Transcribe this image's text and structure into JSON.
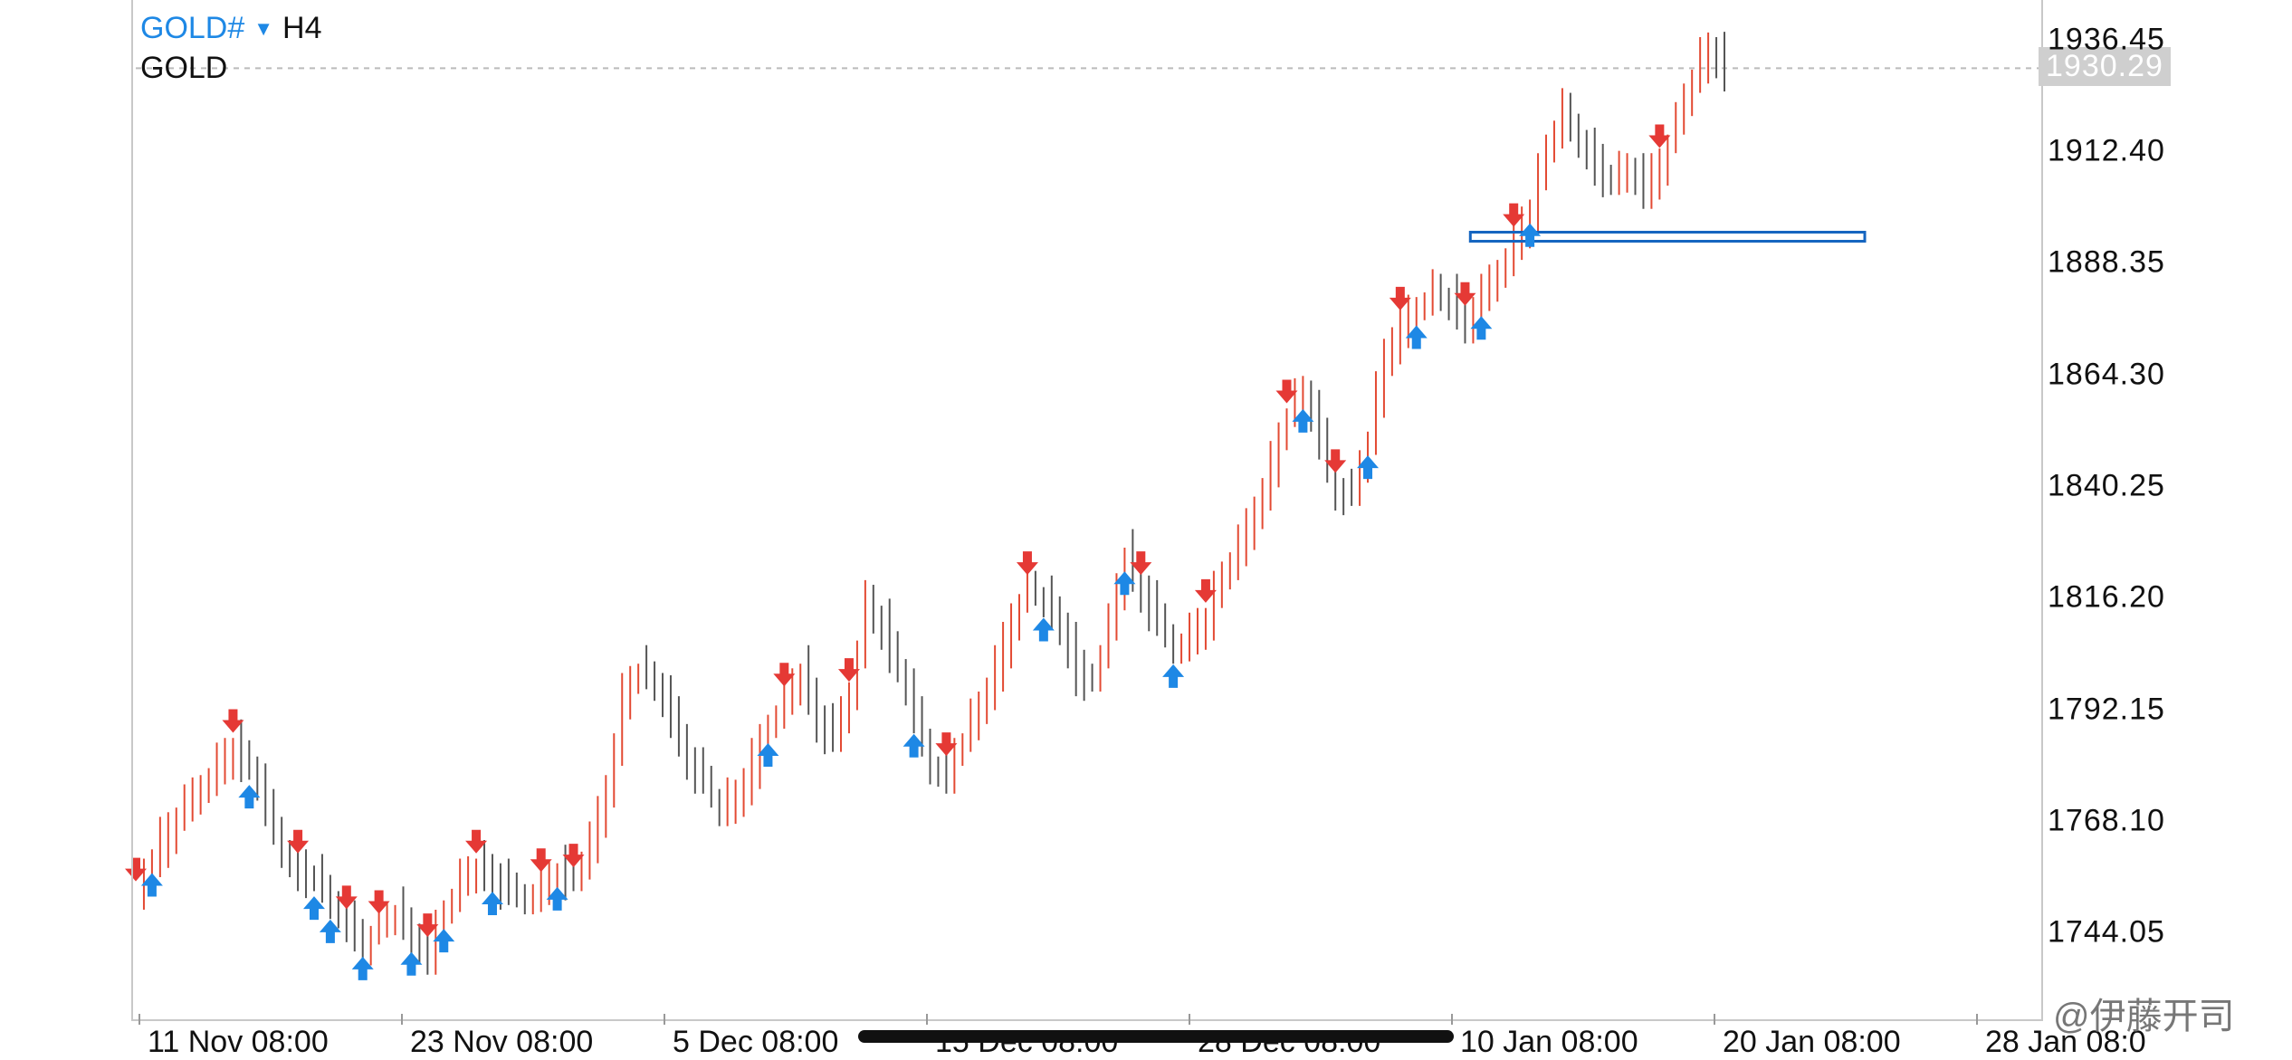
{
  "symbol": {
    "name": "GOLD#",
    "timeframe": "H4",
    "description": "GOLD"
  },
  "current_price": "1930.29",
  "price_axis": [
    "1936.45",
    "1912.40",
    "1888.35",
    "1864.30",
    "1840.25",
    "1816.20",
    "1792.15",
    "1768.10",
    "1744.05"
  ],
  "time_axis": [
    "11 Nov 08:00",
    "23 Nov 08:00",
    "5 Dec 08:00",
    "15 Dec 08:00",
    "28 Dec 08:00",
    "10 Jan 08:00",
    "20 Jan 08:00",
    "28 Jan 08:0"
  ],
  "watermark": "@伊藤开司",
  "colors": {
    "bull": "#e34a33",
    "bear": "#555555",
    "buy_arrow": "#1e88e5",
    "sell_arrow": "#e53935",
    "zone": "#1565c0"
  },
  "chart_data": {
    "type": "ohlc-bars",
    "ylim": [
      1725,
      1945
    ],
    "yticks": [
      1936.45,
      1912.4,
      1888.35,
      1864.3,
      1840.25,
      1816.2,
      1792.15,
      1768.1,
      1744.05
    ],
    "close_path": [
      1752,
      1760,
      1766,
      1770,
      1775,
      1780,
      1784,
      1779,
      1770,
      1762,
      1758,
      1755,
      1750,
      1746,
      1742,
      1745,
      1748,
      1743,
      1740,
      1748,
      1755,
      1758,
      1756,
      1752,
      1751,
      1754,
      1757,
      1755,
      1762,
      1775,
      1795,
      1800,
      1797,
      1790,
      1782,
      1776,
      1770,
      1773,
      1780,
      1788,
      1794,
      1800,
      1790,
      1785,
      1795,
      1815,
      1810,
      1800,
      1790,
      1780,
      1779,
      1785,
      1792,
      1800,
      1812,
      1818,
      1815,
      1810,
      1800,
      1798,
      1810,
      1825,
      1818,
      1810,
      1805,
      1808,
      1812,
      1820,
      1826,
      1835,
      1845,
      1855,
      1860,
      1850,
      1840,
      1838,
      1850,
      1868,
      1875,
      1878,
      1882,
      1880,
      1876,
      1880,
      1886,
      1893,
      1900,
      1912,
      1920,
      1915,
      1910,
      1905,
      1908,
      1904,
      1910,
      1918,
      1928,
      1934,
      1930.29
    ],
    "zone": {
      "price": 1894,
      "from_index": 84,
      "to_index": 99
    },
    "buy_signals": [
      1,
      7,
      11,
      12,
      14,
      17,
      19,
      22,
      26,
      39,
      48,
      56,
      61,
      64,
      72,
      76,
      79,
      83,
      86
    ],
    "sell_signals": [
      0,
      6,
      10,
      13,
      15,
      18,
      21,
      25,
      27,
      40,
      44,
      50,
      55,
      62,
      66,
      71,
      74,
      78,
      82,
      85,
      94
    ]
  }
}
